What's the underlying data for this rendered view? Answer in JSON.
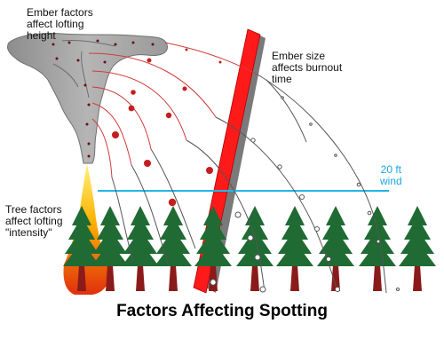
{
  "labels": {
    "ember_factors": "Ember factors\naffect lofting\nheight",
    "ember_size": "Ember size\naffects burnout\ntime",
    "tree_factors": "Tree factors\naffect lofting\n\"intensity\"",
    "wind": "20 ft\nwind"
  },
  "title": "Factors Affecting Spotting",
  "colors": {
    "plume": "#9e9e9e",
    "plume_edge": "#6f6f6f",
    "tree_foliage": "#1f6b33",
    "tree_trunk": "#8b1a1a",
    "fire_inner": "#ffd400",
    "fire_outer": "#e03b10",
    "wind_line": "#22b5e6",
    "tall_bar": "#ff1a1a",
    "tall_bar_shadow": "#7a7a7a",
    "trajectory_red": "#d23b3b",
    "trajectory_dark": "#555555"
  },
  "icons": [
    "plume-cloud-icon",
    "fire-icon",
    "tree-icon"
  ]
}
